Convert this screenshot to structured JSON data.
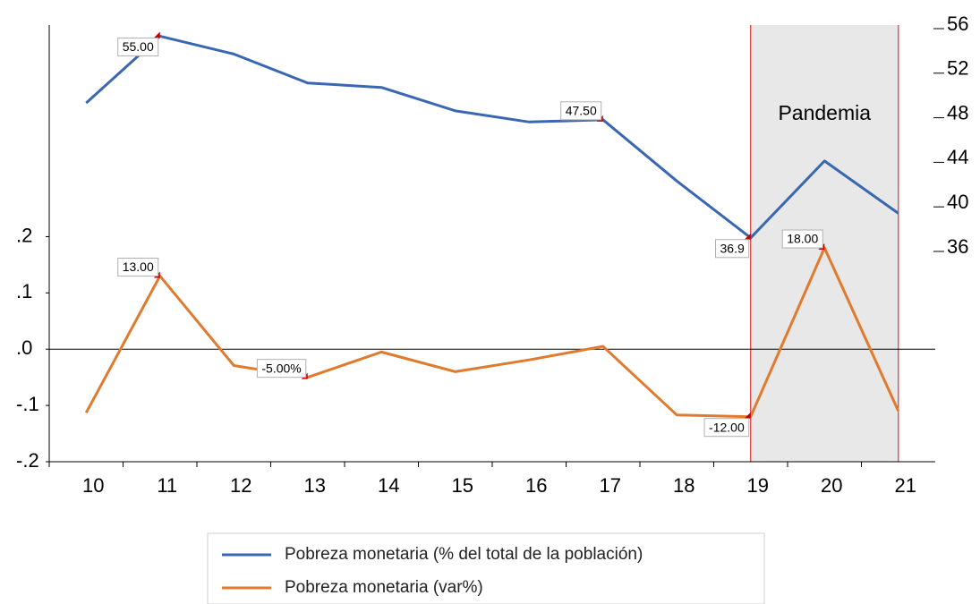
{
  "chart_data": {
    "type": "line",
    "categories": [
      "10",
      "11",
      "12",
      "13",
      "14",
      "15",
      "16",
      "17",
      "18",
      "19",
      "20",
      "21"
    ],
    "series": [
      {
        "name": "Pobreza monetaria (% del total de la población)",
        "color": "#3a67b1",
        "axis": "y2",
        "values": [
          49.0,
          55.0,
          53.4,
          50.8,
          50.4,
          48.3,
          47.3,
          47.5,
          42.0,
          36.9,
          43.8,
          39.1
        ],
        "value_labels": [
          null,
          "55.00",
          null,
          null,
          null,
          null,
          null,
          "47.50",
          null,
          "36.9",
          null,
          null
        ]
      },
      {
        "name": "Pobreza monetaria (var%)",
        "color": "#e07a2e",
        "axis": "y",
        "values": [
          -0.113,
          0.13,
          -0.029,
          -0.05,
          -0.005,
          -0.04,
          -0.019,
          0.005,
          -0.117,
          -0.12,
          0.18,
          -0.11
        ],
        "value_labels": [
          null,
          "13.00",
          null,
          "-5.00%",
          null,
          null,
          null,
          null,
          null,
          "-12.00",
          "18.00",
          null
        ]
      }
    ],
    "ylim": [
      -0.2,
      0.576
    ],
    "yticks": [
      {
        "value": -0.2,
        "label": "-.2"
      },
      {
        "value": -0.1,
        "label": "-.1"
      },
      {
        "value": 0,
        "label": ".0"
      },
      {
        "value": 0.1,
        "label": ".1"
      },
      {
        "value": 0.2,
        "label": ".2"
      }
    ],
    "y2lim": [
      16.8,
      56
    ],
    "y2ticks": [
      36,
      40,
      44,
      48,
      52,
      56
    ],
    "highlight": {
      "label": "Pandemia",
      "from": "19",
      "to": "21"
    },
    "legend": "bottom"
  }
}
